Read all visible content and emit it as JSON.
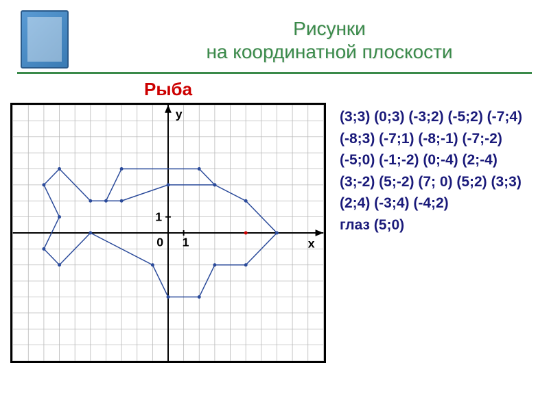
{
  "title": "Рисунки\nна координатной плоскости",
  "subtitle": "Рыба",
  "axis_labels": {
    "x": "х",
    "y": "у",
    "origin": "0",
    "one": "1"
  },
  "chart": {
    "type": "line",
    "xlim": [
      -10,
      10
    ],
    "ylim": [
      -8,
      8
    ],
    "grid_color": "#b8b8b8",
    "axis_color": "#000000",
    "line_color": "#2a4a9a",
    "point_color": "#2a4a9a",
    "background_color": "#ffffff",
    "line_width": 1.5,
    "point_radius": 2.5,
    "label_fontsize": 18,
    "label_color": "#000000",
    "points": [
      [
        3,
        3
      ],
      [
        0,
        3
      ],
      [
        -3,
        2
      ],
      [
        -5,
        2
      ],
      [
        -7,
        4
      ],
      [
        -8,
        3
      ],
      [
        -7,
        1
      ],
      [
        -8,
        -1
      ],
      [
        -7,
        -2
      ],
      [
        -5,
        0
      ],
      [
        -1,
        -2
      ],
      [
        0,
        -4
      ],
      [
        2,
        -4
      ],
      [
        3,
        -2
      ],
      [
        5,
        -2
      ],
      [
        7,
        0
      ],
      [
        5,
        2
      ],
      [
        3,
        3
      ],
      [
        2,
        4
      ],
      [
        -3,
        4
      ],
      [
        -4,
        2
      ]
    ],
    "eye_point": [
      5,
      0
    ],
    "eye_color": "#cc0000"
  },
  "coords_text": "(3;3) (0;3)    (-3;2) (-5;2)   (-7;4) (-8;3)   (-7;1) (-8;-1)  (-7;-2) (-5;0)  (-1;-2) (0;-4) (2;-4) (3;-2) (5;-2) (7; 0) (5;2) (3;3) (2;4) (-3;4)   (-4;2)",
  "eye_label": "глаз (5;0)",
  "colors": {
    "title_color": "#3a8a4a",
    "subtitle_color": "#cc0000",
    "coords_color": "#1a1a7a",
    "underline_color": "#3a8a4a"
  }
}
